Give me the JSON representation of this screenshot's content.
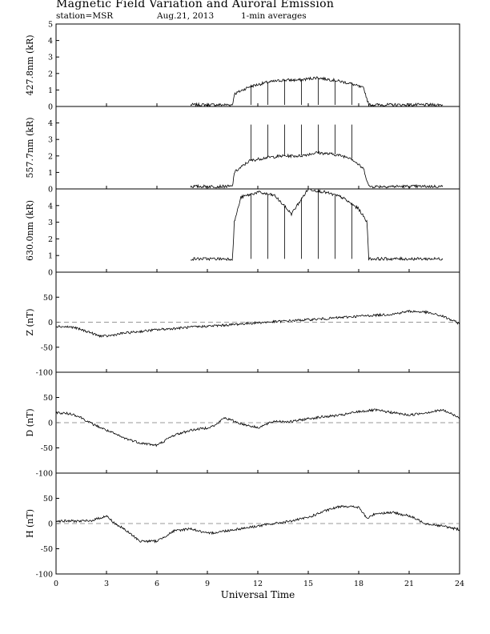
{
  "title": "Magnetic Field Variation and Auroral Emission",
  "station": "station=MSR",
  "date": "Aug.21, 2013",
  "averaging": "1-min averages",
  "chart_data": [
    {
      "type": "line",
      "ylabel": "427.8nm (kR)",
      "ylim": [
        0,
        5
      ],
      "yticks": [
        0,
        1,
        2,
        3,
        4,
        5
      ],
      "xlim": [
        0,
        24
      ],
      "series": [
        {
          "x": [
            8.0,
            10.5,
            10.6,
            11.5,
            12.5,
            13.5,
            14.5,
            15.5,
            16.5,
            17.5,
            18.3,
            18.6,
            23.0
          ],
          "y": [
            0.1,
            0.1,
            0.75,
            1.2,
            1.45,
            1.6,
            1.6,
            1.75,
            1.6,
            1.4,
            1.1,
            0.1,
            0.1
          ]
        }
      ],
      "spikes": [
        11.6,
        12.6,
        13.6,
        14.6,
        15.6,
        16.6,
        17.6
      ],
      "spike_to": 0.1
    },
    {
      "type": "line",
      "ylabel": "557.7nm (kR)",
      "ylim": [
        0,
        5
      ],
      "yticks": [
        0,
        1,
        2,
        3,
        4
      ],
      "xlim": [
        0,
        24
      ],
      "series": [
        {
          "x": [
            8.0,
            10.5,
            10.6,
            11.5,
            12.5,
            13.5,
            14.5,
            15.5,
            16.5,
            17.5,
            18.3,
            18.6,
            23.0
          ],
          "y": [
            0.15,
            0.15,
            1.0,
            1.7,
            1.9,
            2.0,
            2.0,
            2.2,
            2.1,
            1.9,
            1.2,
            0.15,
            0.15
          ]
        }
      ],
      "spikes": [
        11.6,
        12.6,
        13.6,
        14.6,
        15.6,
        16.6,
        17.6
      ],
      "spike_to": 3.9
    },
    {
      "type": "line",
      "ylabel": "630.0nm (kR)",
      "ylim": [
        0,
        5
      ],
      "yticks": [
        0,
        1,
        2,
        3,
        4
      ],
      "xlim": [
        0,
        24
      ],
      "series": [
        {
          "x": [
            8.0,
            10.5,
            10.6,
            11.0,
            12.0,
            13.0,
            14.0,
            15.0,
            16.0,
            17.0,
            18.0,
            18.5,
            18.6,
            23.0
          ],
          "y": [
            0.8,
            0.8,
            3.0,
            4.5,
            4.8,
            4.6,
            3.5,
            5.0,
            4.8,
            4.5,
            3.8,
            3.0,
            0.8,
            0.8
          ]
        }
      ],
      "spikes": [
        11.6,
        12.6,
        13.6,
        14.6,
        15.6,
        16.6,
        17.6
      ],
      "spike_to": 0.8
    },
    {
      "type": "line",
      "ylabel": "Z (nT)",
      "ylim": [
        -100,
        100
      ],
      "yticks": [
        -100,
        -50,
        0,
        50
      ],
      "xlim": [
        0,
        24
      ],
      "zero_line": true,
      "series": [
        {
          "x": [
            0,
            1,
            2,
            2.5,
            3,
            4,
            6,
            8,
            10,
            12,
            14,
            16,
            18,
            20,
            21,
            22,
            23,
            24
          ],
          "y": [
            -8,
            -10,
            -20,
            -27,
            -28,
            -22,
            -15,
            -10,
            -6,
            -1,
            3,
            7,
            12,
            16,
            22,
            20,
            12,
            -3
          ]
        }
      ]
    },
    {
      "type": "line",
      "ylabel": "D (nT)",
      "ylim": [
        -100,
        100
      ],
      "yticks": [
        -100,
        -50,
        0,
        50
      ],
      "xlim": [
        0,
        24
      ],
      "zero_line": true,
      "series": [
        {
          "x": [
            0,
            1,
            1.5,
            2,
            3,
            4,
            5,
            6,
            7,
            8,
            9,
            9.5,
            10,
            11,
            12,
            13,
            14,
            15,
            16,
            17,
            18,
            19,
            20,
            21,
            22,
            23,
            24
          ],
          "y": [
            20,
            17,
            10,
            0,
            -15,
            -30,
            -40,
            -45,
            -25,
            -15,
            -10,
            -5,
            10,
            -2,
            -10,
            3,
            2,
            8,
            12,
            15,
            22,
            25,
            20,
            15,
            20,
            25,
            10
          ]
        }
      ]
    },
    {
      "type": "line",
      "ylabel": "H (nT)",
      "ylim": [
        -100,
        100
      ],
      "yticks": [
        -100,
        -50,
        0,
        50
      ],
      "xlim": [
        0,
        24
      ],
      "zero_line": true,
      "series": [
        {
          "x": [
            0,
            1,
            2,
            2.5,
            3,
            3.5,
            4,
            5,
            6,
            7,
            8,
            9,
            10,
            11,
            12,
            13,
            14,
            15,
            16,
            17,
            18,
            18.5,
            19,
            20,
            21,
            22,
            23,
            24
          ],
          "y": [
            5,
            5,
            5,
            10,
            15,
            0,
            -10,
            -35,
            -35,
            -15,
            -10,
            -20,
            -15,
            -10,
            -5,
            0,
            5,
            12,
            25,
            35,
            32,
            10,
            20,
            22,
            15,
            0,
            -5,
            -12
          ]
        }
      ]
    }
  ],
  "xticks": [
    0,
    3,
    6,
    9,
    12,
    15,
    18,
    21,
    24
  ],
  "xlabel": "Universal Time"
}
